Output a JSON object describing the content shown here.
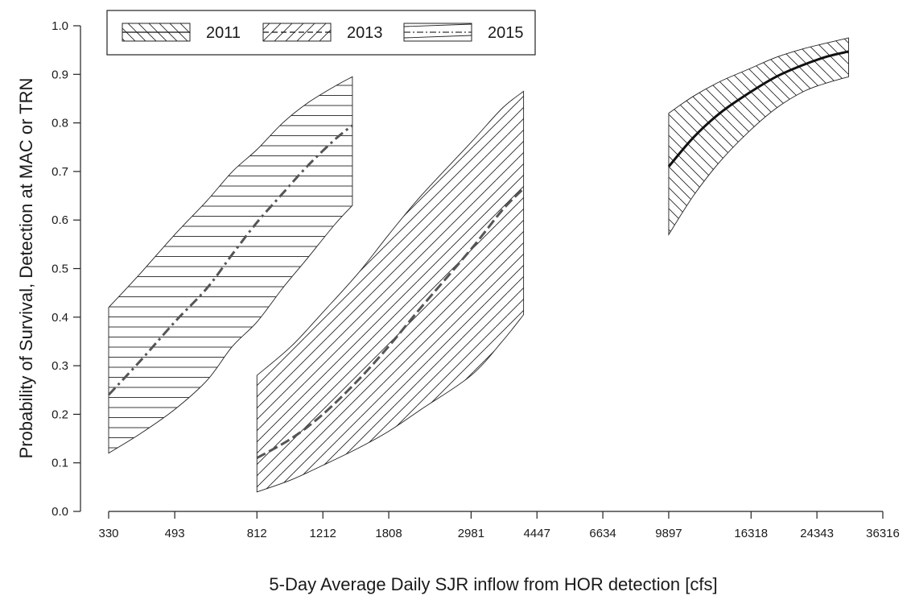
{
  "chart_data": {
    "type": "area",
    "xlabel": "5-Day Average Daily SJR inflow from HOR detection [cfs]",
    "ylabel": "Probability of Survival, Detection at MAC or TRN",
    "x_scale": "log",
    "xlim": [
      330,
      36316
    ],
    "ylim": [
      0.0,
      1.0
    ],
    "x_ticks": [
      330,
      493,
      812,
      1212,
      1808,
      2981,
      4447,
      6634,
      9897,
      16318,
      24343,
      36316
    ],
    "y_ticks": [
      0.0,
      0.1,
      0.2,
      0.3,
      0.4,
      0.5,
      0.6,
      0.7,
      0.8,
      0.9,
      1.0
    ],
    "y_tick_labels": [
      "0.0",
      "0.1",
      "0.2",
      "0.3",
      "0.4",
      "0.5",
      "0.6",
      "0.7",
      "0.8",
      "0.9",
      "1.0"
    ],
    "grid": false,
    "legend_position": "top-left",
    "series": [
      {
        "name": "2011",
        "line_style": "solid",
        "hatch": "back-diagonal",
        "x": [
          9897,
          11500,
          13500,
          16000,
          19000,
          22500,
          26000,
          29500
        ],
        "estimate": [
          0.71,
          0.77,
          0.82,
          0.86,
          0.895,
          0.92,
          0.937,
          0.947
        ],
        "lower": [
          0.57,
          0.65,
          0.72,
          0.78,
          0.83,
          0.865,
          0.883,
          0.895
        ],
        "upper": [
          0.82,
          0.855,
          0.885,
          0.91,
          0.935,
          0.953,
          0.965,
          0.975
        ]
      },
      {
        "name": "2013",
        "line_style": "dashed",
        "hatch": "forward-diagonal",
        "x": [
          812,
          1000,
          1212,
          1500,
          1808,
          2200,
          2981,
          3600,
          4100
        ],
        "estimate": [
          0.11,
          0.15,
          0.2,
          0.27,
          0.34,
          0.42,
          0.54,
          0.62,
          0.665
        ],
        "lower": [
          0.04,
          0.065,
          0.095,
          0.13,
          0.165,
          0.21,
          0.28,
          0.35,
          0.405
        ],
        "upper": [
          0.28,
          0.34,
          0.41,
          0.49,
          0.57,
          0.65,
          0.76,
          0.83,
          0.865
        ]
      },
      {
        "name": "2015",
        "line_style": "dash-dot",
        "hatch": "horizontal",
        "x": [
          330,
          400,
          493,
          600,
          700,
          812,
          950,
          1100,
          1300,
          1450
        ],
        "estimate": [
          0.24,
          0.31,
          0.39,
          0.46,
          0.53,
          0.595,
          0.655,
          0.71,
          0.765,
          0.795
        ],
        "lower": [
          0.12,
          0.16,
          0.21,
          0.27,
          0.34,
          0.39,
          0.46,
          0.52,
          0.59,
          0.63
        ],
        "upper": [
          0.42,
          0.49,
          0.57,
          0.64,
          0.7,
          0.745,
          0.8,
          0.84,
          0.875,
          0.895
        ]
      }
    ]
  }
}
